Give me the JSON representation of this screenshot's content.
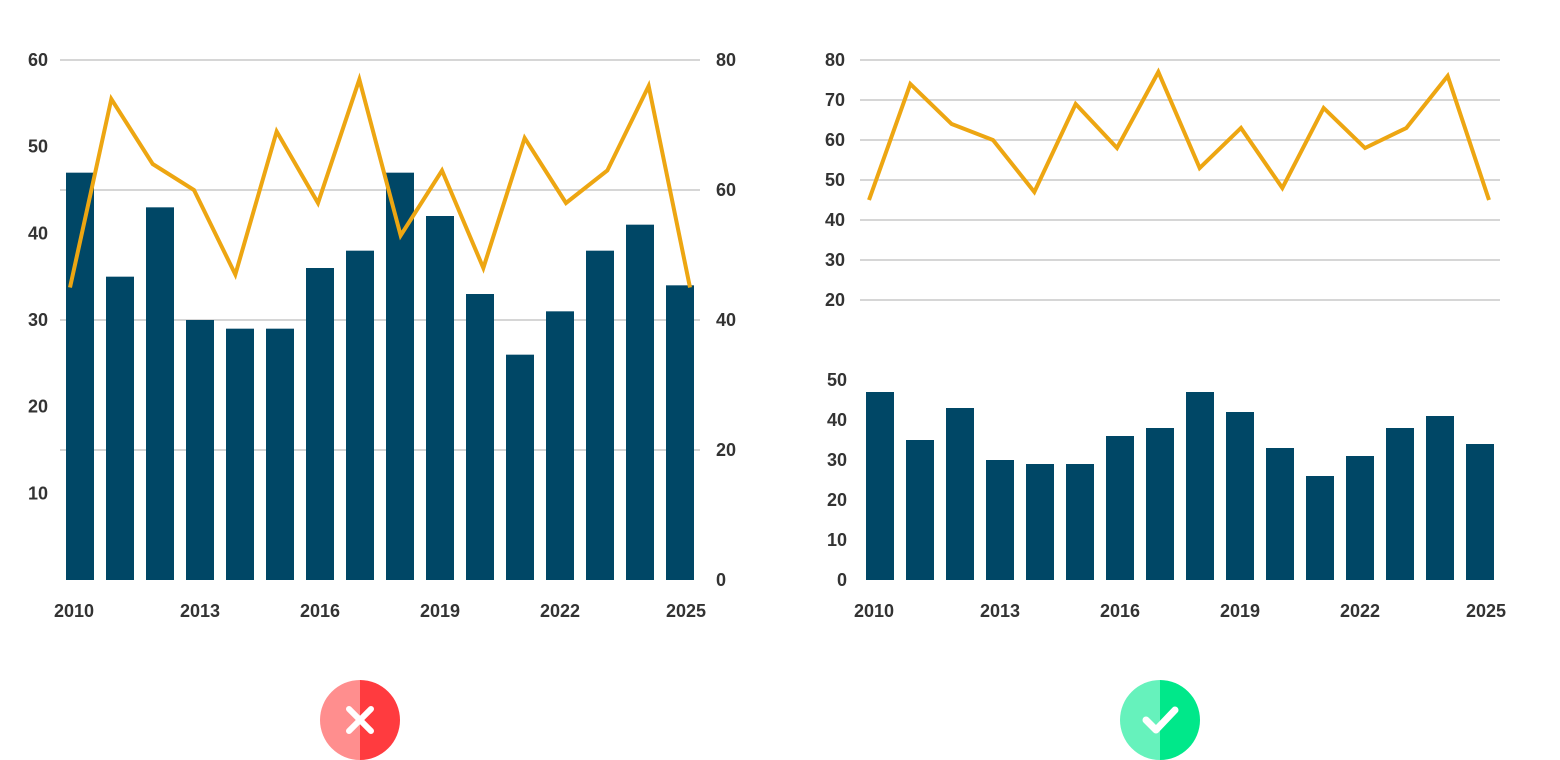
{
  "colors": {
    "bar": "#004766",
    "line": "#EDA612",
    "grid": "#C8C8C8",
    "text": "#333333",
    "bad_dark": "#FF3B3F",
    "bad_light": "#FF8E8E",
    "good_dark": "#00E88A",
    "good_light": "#66F2BC"
  },
  "badges": {
    "left": {
      "icon": "cross-icon"
    },
    "right": {
      "icon": "check-icon"
    }
  },
  "chart_data": [
    {
      "type": "bar+line",
      "dual_axis": true,
      "x": [
        2010,
        2011,
        2012,
        2013,
        2014,
        2015,
        2016,
        2017,
        2018,
        2019,
        2020,
        2021,
        2022,
        2023,
        2024,
        2025
      ],
      "x_tick_labels": [
        "2010",
        "2013",
        "2016",
        "2019",
        "2022",
        "2025"
      ],
      "bars": [
        47,
        35,
        43,
        30,
        29,
        29,
        36,
        38,
        47,
        42,
        33,
        26,
        31,
        38,
        41,
        34
      ],
      "line": [
        45,
        74,
        64,
        60,
        47,
        69,
        58,
        77,
        53,
        63,
        48,
        68,
        58,
        63,
        76,
        45
      ],
      "y_left": {
        "range": [
          0,
          60
        ],
        "ticks": [
          "10",
          "20",
          "30",
          "40",
          "50",
          "60"
        ]
      },
      "y_right": {
        "range": [
          0,
          80
        ],
        "ticks": [
          "0",
          "20",
          "40",
          "60",
          "80"
        ]
      },
      "grid": true,
      "verdict": "bad"
    },
    {
      "type": "line",
      "x": [
        2010,
        2011,
        2012,
        2013,
        2014,
        2015,
        2016,
        2017,
        2018,
        2019,
        2020,
        2021,
        2022,
        2023,
        2024,
        2025
      ],
      "values": [
        45,
        74,
        64,
        60,
        47,
        69,
        58,
        77,
        53,
        63,
        48,
        68,
        58,
        63,
        76,
        45
      ],
      "y": {
        "range": [
          20,
          80
        ],
        "ticks": [
          "20",
          "30",
          "40",
          "50",
          "60",
          "70",
          "80"
        ]
      },
      "grid": true,
      "verdict": "good"
    },
    {
      "type": "bar",
      "x": [
        2010,
        2011,
        2012,
        2013,
        2014,
        2015,
        2016,
        2017,
        2018,
        2019,
        2020,
        2021,
        2022,
        2023,
        2024,
        2025
      ],
      "x_tick_labels": [
        "2010",
        "2013",
        "2016",
        "2019",
        "2022",
        "2025"
      ],
      "values": [
        47,
        35,
        43,
        30,
        29,
        29,
        36,
        38,
        47,
        42,
        33,
        26,
        31,
        38,
        41,
        34
      ],
      "y": {
        "range": [
          0,
          50
        ],
        "ticks": [
          "0",
          "10",
          "20",
          "30",
          "40",
          "50"
        ]
      },
      "grid": false,
      "verdict": "good"
    }
  ]
}
